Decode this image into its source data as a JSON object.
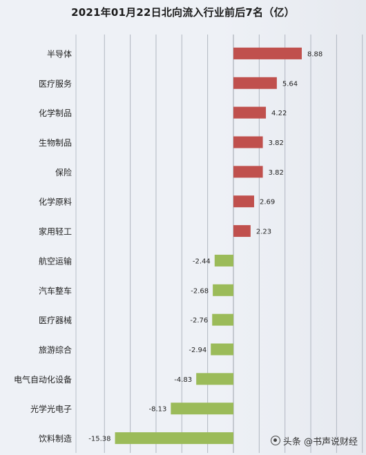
{
  "chart_data": {
    "type": "bar",
    "orientation": "horizontal",
    "title": "2021年01月22日北向流入行业前后7名（亿）",
    "categories": [
      "半导体",
      "医疗服务",
      "化学制品",
      "生物制品",
      "保险",
      "化学原料",
      "家用轻工",
      "航空运输",
      "汽车整车",
      "医疗器械",
      "旅游综合",
      "电气自动化设备",
      "光学光电子",
      "饮料制造"
    ],
    "values": [
      8.88,
      5.64,
      4.22,
      3.82,
      3.82,
      2.69,
      2.23,
      -2.44,
      -2.68,
      -2.76,
      -2.94,
      -4.83,
      -8.13,
      -15.38
    ],
    "xlim": [
      -15.38,
      8.88
    ],
    "grid": true,
    "colors": {
      "positive": "#c0504d",
      "negative": "#9bbb59",
      "grid": "#b0b6c0",
      "text": "#222222"
    }
  },
  "watermark": {
    "text": "头条 @书声说财经",
    "icon": "at-icon"
  }
}
